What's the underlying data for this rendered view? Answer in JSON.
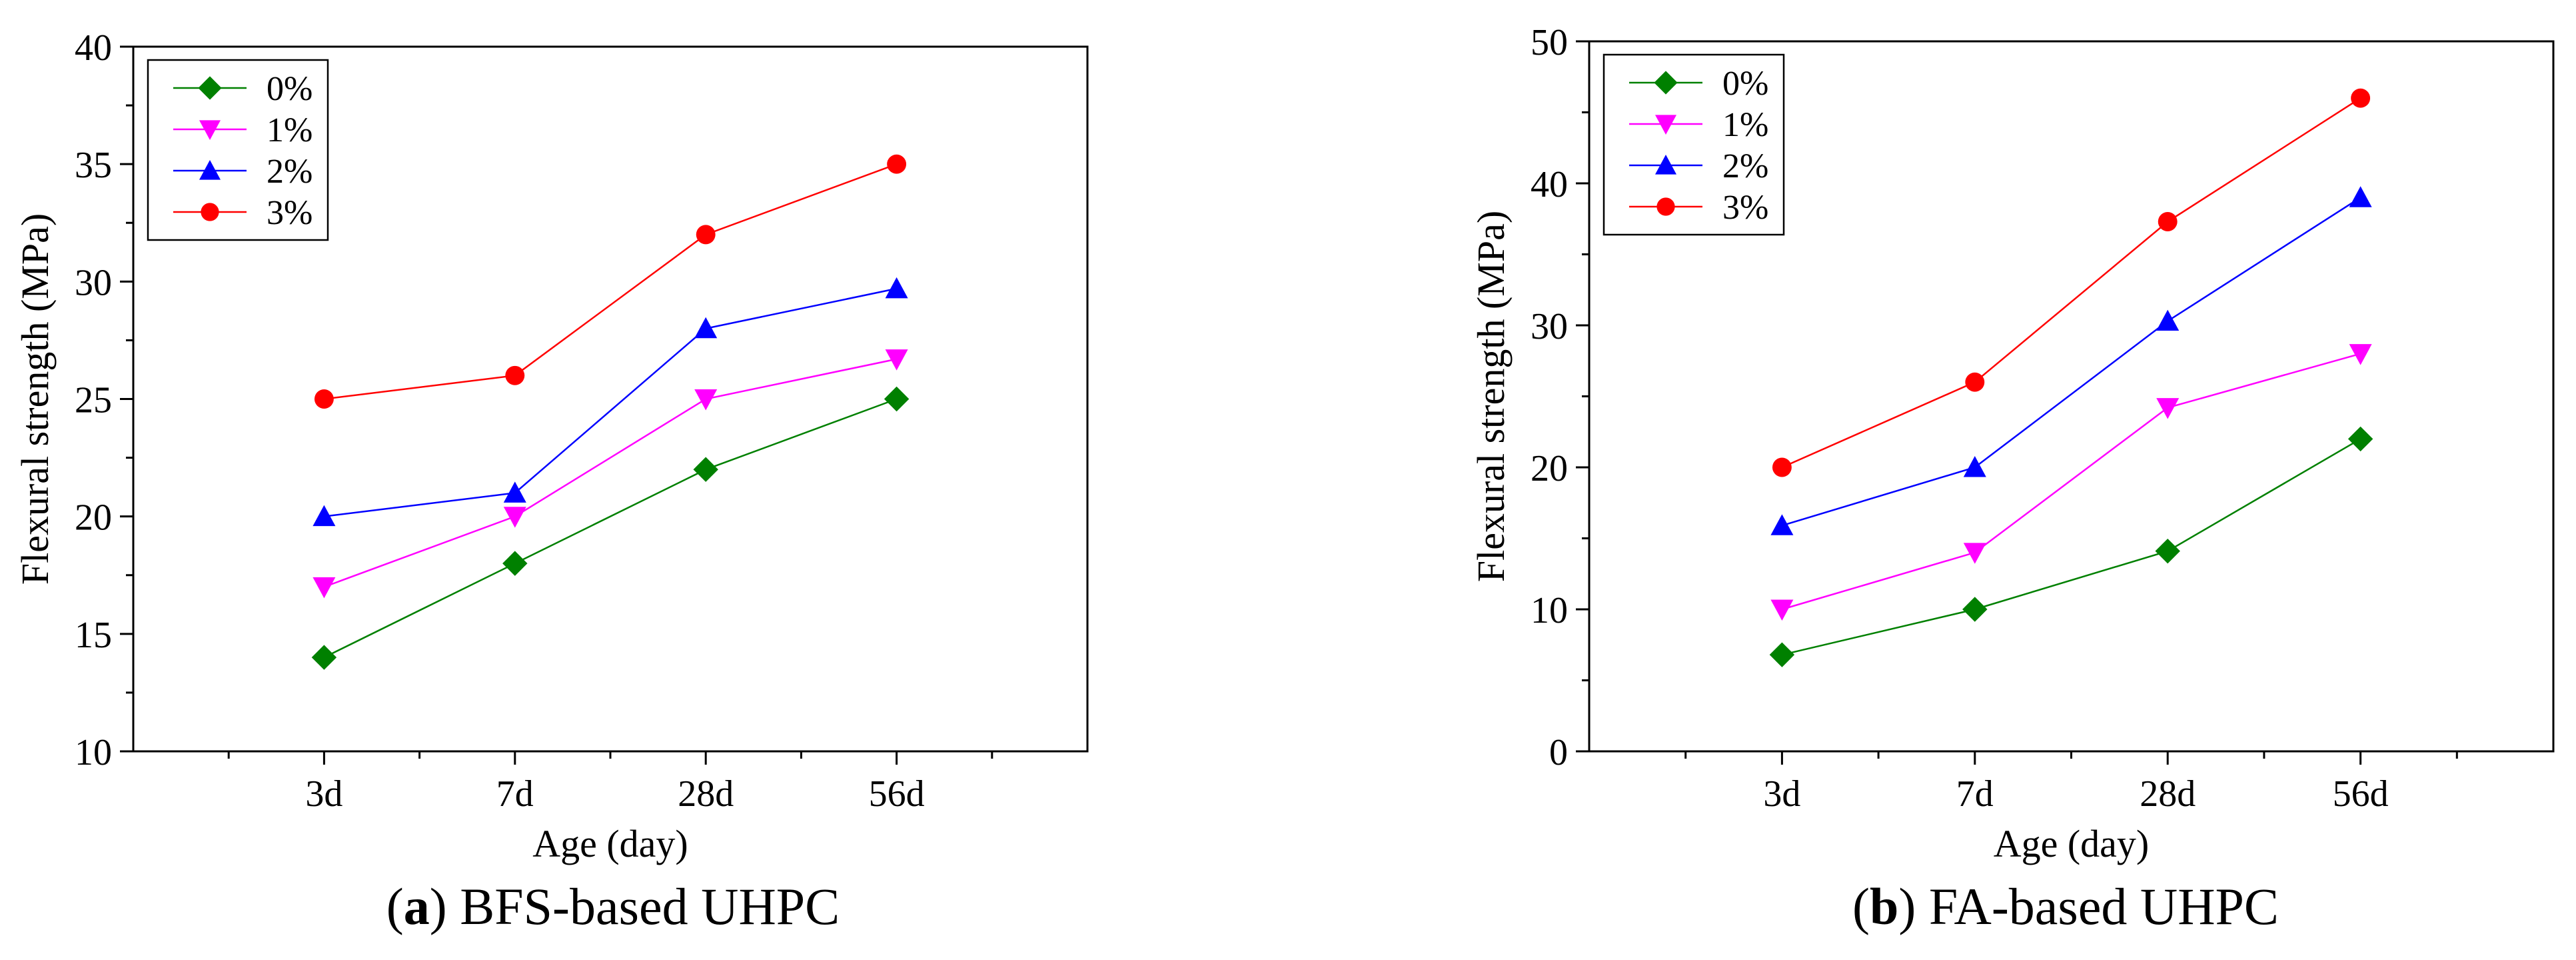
{
  "chart_data": [
    {
      "type": "line",
      "panel_letter": "a",
      "caption": "BFS-based UHPC",
      "title": "",
      "xlabel": "Age (day)",
      "ylabel": "Flexural strength (MPa)",
      "categories": [
        "3d",
        "7d",
        "28d",
        "56d"
      ],
      "ylim": [
        10,
        40
      ],
      "yticks": [
        10,
        15,
        20,
        25,
        30,
        35,
        40
      ],
      "grid": false,
      "legend": "top-left",
      "series": [
        {
          "name": "0%",
          "color": "#008000",
          "marker": "diamond",
          "values": [
            14,
            18,
            22,
            25
          ]
        },
        {
          "name": "1%",
          "color": "#ff00ff",
          "marker": "triangle-down",
          "values": [
            17,
            20,
            25,
            26.7
          ]
        },
        {
          "name": "2%",
          "color": "#0000ff",
          "marker": "triangle-up",
          "values": [
            20,
            21,
            28,
            29.7
          ]
        },
        {
          "name": "3%",
          "color": "#ff0000",
          "marker": "circle",
          "values": [
            25,
            26,
            32,
            35
          ]
        }
      ]
    },
    {
      "type": "line",
      "panel_letter": "b",
      "caption": "FA-based UHPC",
      "title": "",
      "xlabel": "Age (day)",
      "ylabel": "Flexural strength (MPa)",
      "categories": [
        "3d",
        "7d",
        "28d",
        "56d"
      ],
      "ylim": [
        0,
        50
      ],
      "yticks": [
        0,
        10,
        20,
        30,
        40,
        50
      ],
      "grid": false,
      "legend": "top-left",
      "series": [
        {
          "name": "0%",
          "color": "#008000",
          "marker": "diamond",
          "values": [
            6.8,
            10,
            14.1,
            22
          ]
        },
        {
          "name": "1%",
          "color": "#ff00ff",
          "marker": "triangle-down",
          "values": [
            10,
            14,
            24.2,
            28
          ]
        },
        {
          "name": "2%",
          "color": "#0000ff",
          "marker": "triangle-up",
          "values": [
            15.9,
            20,
            30.3,
            39
          ]
        },
        {
          "name": "3%",
          "color": "#ff0000",
          "marker": "circle",
          "values": [
            20,
            26,
            37.3,
            46
          ]
        }
      ]
    }
  ]
}
